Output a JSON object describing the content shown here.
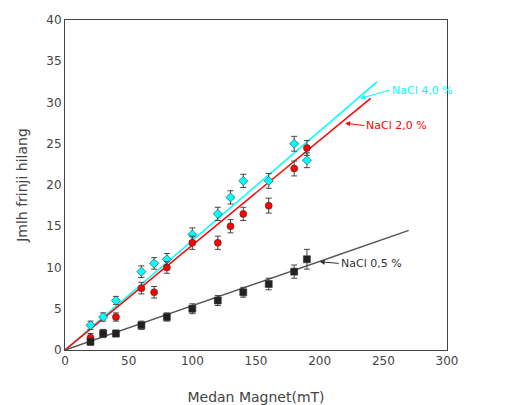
{
  "chart_data": {
    "type": "scatter",
    "xlabel": "Medan Magnet(mT)",
    "ylabel": "Jmlh frinji hilang",
    "xlim": [
      0,
      300
    ],
    "ylim": [
      0,
      40
    ],
    "xticks": [
      0,
      50,
      100,
      150,
      200,
      250,
      300
    ],
    "yticks": [
      0,
      5,
      10,
      15,
      20,
      25,
      30,
      35,
      40
    ],
    "grid": false,
    "series": [
      {
        "type": "line",
        "color": "cyan",
        "x": [
          0,
          245
        ],
        "values": [
          0,
          32.5
        ]
      },
      {
        "type": "line",
        "color": "red",
        "x": [
          0,
          240
        ],
        "values": [
          0,
          30.5
        ]
      },
      {
        "type": "line",
        "color": "#555555",
        "x": [
          0,
          270
        ],
        "values": [
          0,
          14.5
        ]
      },
      {
        "type": "scatter",
        "name": "NaCl 4,0 %",
        "color": "cyan",
        "marker": "diamond",
        "x": [
          20,
          30,
          40,
          60,
          70,
          80,
          100,
          120,
          130,
          140,
          160,
          180,
          190
        ],
        "values": [
          3.0,
          4.0,
          6.0,
          9.5,
          10.5,
          11.0,
          14.0,
          16.5,
          18.5,
          20.5,
          20.5,
          25.0,
          23.0
        ],
        "yerr": [
          0.5,
          0.5,
          0.5,
          0.7,
          0.7,
          0.7,
          0.8,
          0.8,
          0.8,
          0.8,
          0.9,
          0.9,
          0.9
        ]
      },
      {
        "type": "scatter",
        "name": "NaCl 2,0 %",
        "color": "red",
        "marker": "circle",
        "x": [
          20,
          30,
          40,
          60,
          70,
          80,
          100,
          120,
          130,
          140,
          160,
          180,
          190
        ],
        "values": [
          1.5,
          2.0,
          4.0,
          7.5,
          7.0,
          10.0,
          13.0,
          13.0,
          15.0,
          16.5,
          17.5,
          22.0,
          24.5
        ],
        "yerr": [
          0.5,
          0.5,
          0.5,
          0.7,
          0.7,
          0.7,
          0.8,
          0.8,
          0.8,
          0.8,
          0.9,
          0.9,
          0.9
        ]
      },
      {
        "type": "scatter",
        "name": "NaCl 0,5 %",
        "color": "#222222",
        "marker": "square",
        "x": [
          20,
          30,
          40,
          60,
          80,
          100,
          120,
          140,
          160,
          180,
          190
        ],
        "values": [
          1.0,
          2.0,
          2.0,
          3.0,
          4.0,
          5.0,
          6.0,
          7.0,
          8.0,
          9.5,
          11.0
        ],
        "yerr": [
          0.4,
          0.4,
          0.4,
          0.5,
          0.5,
          0.6,
          0.6,
          0.6,
          0.7,
          0.8,
          1.2
        ]
      }
    ],
    "annotations": [
      {
        "text": "NaCl 4,0 %",
        "xy": [
          232,
          30.5
        ],
        "xytext": [
          255,
          31.5
        ],
        "color": "cyan"
      },
      {
        "text": "NaCl 2,0 %",
        "xy": [
          220,
          27.5
        ],
        "xytext": [
          235,
          27.2
        ],
        "color": "red"
      },
      {
        "text": "NaCl 0,5 %",
        "xy": [
          200,
          10.7
        ],
        "xytext": [
          215,
          10.5
        ],
        "color": "#333333"
      }
    ]
  }
}
